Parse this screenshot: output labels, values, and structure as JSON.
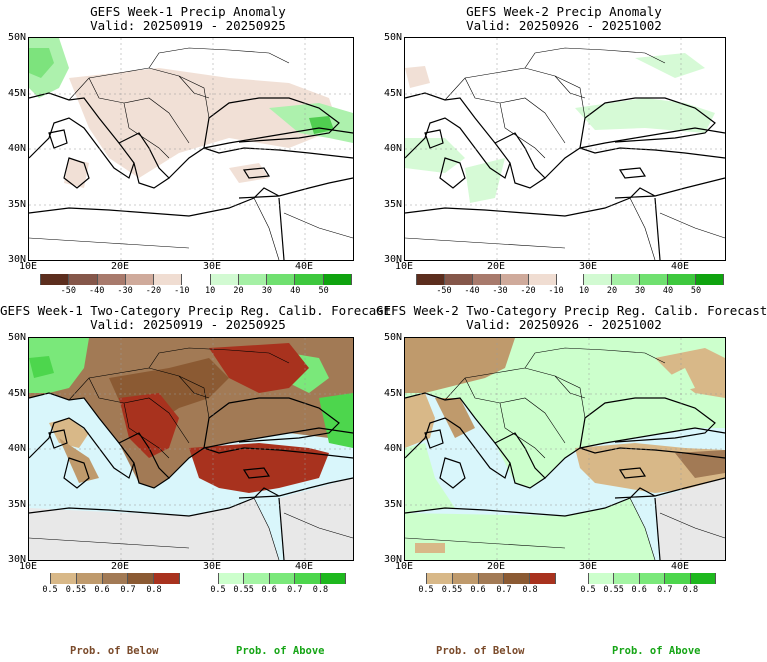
{
  "panels": [
    {
      "title": "GEFS Week-1 Precip Anomaly",
      "valid": "Valid: 20250919 - 20250925"
    },
    {
      "title": "GEFS Week-2 Precip Anomaly",
      "valid": "Valid: 20250926 - 20251002"
    },
    {
      "title": "GEFS Week-1 Two-Category Precip Reg. Calib. Forecast",
      "valid": "Valid: 20250919 - 20250925"
    },
    {
      "title": "GEFS Week-2 Two-Category Precip Reg. Calib. Forecast",
      "valid": "Valid: 20250926 - 20251002"
    }
  ],
  "lat_labels": [
    "50N",
    "45N",
    "40N",
    "35N",
    "30N"
  ],
  "lon_labels": [
    "10E",
    "20E",
    "30E",
    "40E"
  ],
  "anomaly_scale": {
    "ticks": [
      "-50",
      "-40",
      "-30",
      "-20",
      "-10",
      "10",
      "20",
      "30",
      "40",
      "50"
    ],
    "colors": [
      "#5c2e1e",
      "#85574a",
      "#a87a6c",
      "#cfaa9b",
      "#f0ddd2",
      "#ffffff",
      "#d2fad2",
      "#a5f0a5",
      "#70e070",
      "#3ec83e",
      "#0fa30f"
    ]
  },
  "prob_below": {
    "ticks": [
      "0.5",
      "0.55",
      "0.6",
      "0.7",
      "0.8"
    ],
    "colors": [
      "#d8b888",
      "#bf9a6c",
      "#a27a55",
      "#8b5a33",
      "#a8321e"
    ]
  },
  "prob_above": {
    "ticks": [
      "0.5",
      "0.55",
      "0.6",
      "0.7",
      "0.8"
    ],
    "colors": [
      "#ccffcc",
      "#a4f5a4",
      "#7ae87a",
      "#4dd64d",
      "#1eb81e"
    ]
  },
  "captions": {
    "below": "Prob. of Below",
    "above": "Prob. of Above"
  },
  "colors": {
    "sea_below_above": "#d9f6fb",
    "land_na": "#e8e8e8",
    "coast": "#000000"
  }
}
